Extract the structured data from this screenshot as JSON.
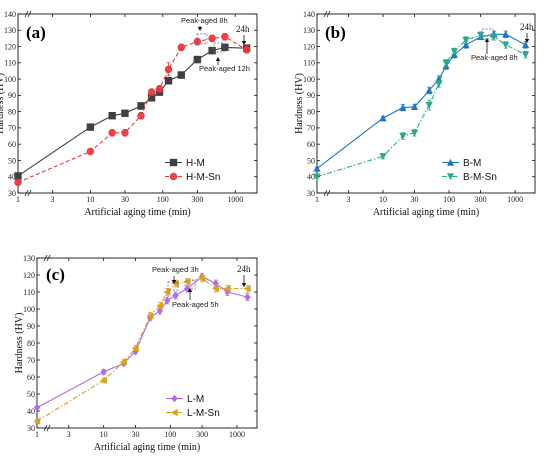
{
  "chart_data": [
    {
      "type": "line",
      "panel_label": "(a)",
      "xlabel": "Artificial aging time (min)",
      "ylabel": "Hardness (HV)",
      "x_scale": "log",
      "xlim": [
        1,
        2000
      ],
      "ylim": [
        30,
        140
      ],
      "x_ticks": [
        1,
        3,
        10,
        30,
        100,
        300,
        1000
      ],
      "x_tick_labels": [
        "1",
        "3",
        "10",
        "30",
        "100",
        "300",
        "1000"
      ],
      "y_ticks": [
        30,
        40,
        50,
        60,
        70,
        80,
        90,
        100,
        110,
        120,
        130,
        140
      ],
      "grid": false,
      "legend_position": "bottom-right",
      "annotations": [
        "Peak-aged 8h",
        "Peak-aged 12h",
        "24h"
      ],
      "series": [
        {
          "name": "H-M",
          "color": "#404040",
          "marker": "square",
          "line_style": "solid",
          "x": [
            1,
            10,
            20,
            30,
            50,
            70,
            90,
            120,
            180,
            300,
            480,
            720,
            1440
          ],
          "y": [
            40.5,
            70.5,
            77.5,
            79,
            83.5,
            88.5,
            92,
            99,
            102.5,
            112,
            117.5,
            119.5,
            119
          ],
          "err": [
            1,
            1.5,
            1.5,
            1.5,
            2,
            2,
            2,
            2,
            2,
            2,
            2,
            2,
            2
          ]
        },
        {
          "name": "H-M-Sn",
          "color": "#e8373b",
          "marker": "circle",
          "line_style": "dashed",
          "x": [
            1,
            10,
            20,
            30,
            50,
            70,
            90,
            120,
            180,
            300,
            480,
            720,
            1440
          ],
          "y": [
            36.5,
            55.5,
            67,
            67,
            77.5,
            92,
            94,
            106,
            119.5,
            123,
            125,
            126,
            118
          ],
          "err": [
            1,
            1.5,
            2,
            2,
            2,
            2,
            2,
            4,
            2,
            2,
            2,
            2,
            2
          ]
        }
      ]
    },
    {
      "type": "line",
      "panel_label": "(b)",
      "xlabel": "Artificial aging time (min)",
      "ylabel": "Hardness (HV)",
      "x_scale": "log",
      "xlim": [
        1,
        2000
      ],
      "ylim": [
        30,
        140
      ],
      "x_ticks": [
        1,
        3,
        10,
        30,
        100,
        300,
        1000
      ],
      "x_tick_labels": [
        "1",
        "3",
        "10",
        "30",
        "100",
        "300",
        "1000"
      ],
      "y_ticks": [
        30,
        40,
        50,
        60,
        70,
        80,
        90,
        100,
        110,
        120,
        130,
        140
      ],
      "grid": false,
      "legend_position": "bottom-right",
      "annotations": [
        "Peak-aged 8h",
        "24h"
      ],
      "series": [
        {
          "name": "B-M",
          "color": "#1f77c4",
          "marker": "triangle-up",
          "line_style": "solid",
          "x": [
            1,
            10,
            20,
            30,
            50,
            70,
            90,
            120,
            180,
            300,
            480,
            720,
            1440
          ],
          "y": [
            45,
            76,
            82.5,
            83,
            93,
            100,
            108,
            115,
            121,
            126,
            127.5,
            127.5,
            121
          ],
          "err": [
            1,
            1,
            2,
            1.5,
            2,
            2,
            2,
            2,
            2,
            1.5,
            2,
            2,
            2
          ]
        },
        {
          "name": "B-M-Sn",
          "color": "#2aaa8a",
          "marker": "triangle-down",
          "line_style": "dash-dot",
          "x": [
            1,
            10,
            20,
            30,
            50,
            70,
            90,
            120,
            180,
            300,
            480,
            720,
            1440
          ],
          "y": [
            40,
            52.5,
            65,
            67,
            84,
            97,
            110,
            117,
            124,
            127,
            126,
            121,
            115
          ],
          "err": [
            1,
            1.5,
            2,
            2,
            3,
            2,
            2,
            2,
            2,
            2,
            2,
            2,
            2
          ]
        }
      ]
    },
    {
      "type": "line",
      "panel_label": "(c)",
      "xlabel": "Artificial aging time (min)",
      "ylabel": "Hardness (HV)",
      "x_scale": "log",
      "xlim": [
        1,
        2000
      ],
      "ylim": [
        30,
        130
      ],
      "x_ticks": [
        1,
        3,
        10,
        30,
        100,
        300,
        1000
      ],
      "x_tick_labels": [
        "1",
        "3",
        "10",
        "30",
        "100",
        "300",
        "1000"
      ],
      "y_ticks": [
        30,
        40,
        50,
        60,
        70,
        80,
        90,
        100,
        110,
        120,
        130
      ],
      "grid": false,
      "legend_position": "bottom-right",
      "annotations": [
        "Peak-aged 3h",
        "Peak-aged 5h",
        "24h"
      ],
      "series": [
        {
          "name": "L-M",
          "color": "#b36ae2",
          "marker": "diamond",
          "line_style": "solid",
          "x": [
            1,
            10,
            20,
            30,
            50,
            70,
            90,
            120,
            180,
            300,
            480,
            720,
            1440
          ],
          "y": [
            42,
            63,
            68,
            75,
            95,
            99,
            105,
            108,
            112,
            119,
            115,
            110,
            107
          ],
          "err": [
            1,
            1.5,
            1.5,
            1.5,
            2,
            2,
            2,
            2,
            2,
            2,
            2,
            2,
            2
          ]
        },
        {
          "name": "L-M-Sn",
          "color": "#d9a21b",
          "marker": "triangle-left",
          "line_style": "dash-dot",
          "x": [
            1,
            10,
            20,
            30,
            50,
            70,
            90,
            120,
            180,
            300,
            480,
            720,
            1440
          ],
          "y": [
            34,
            58,
            69,
            77,
            96,
            102,
            110,
            115,
            116,
            118,
            112,
            112,
            112
          ],
          "err": [
            1,
            1.5,
            1.5,
            1.5,
            2,
            2,
            2,
            2,
            2,
            2,
            2,
            2,
            2
          ]
        }
      ]
    }
  ]
}
